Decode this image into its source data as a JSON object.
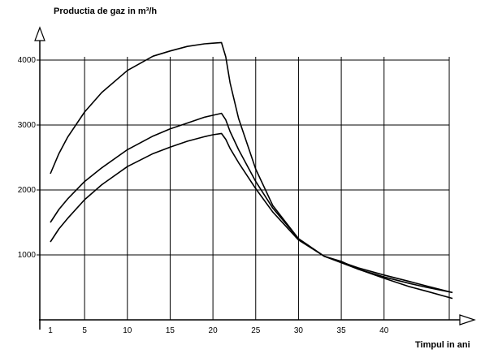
{
  "chart_data": {
    "type": "line",
    "ylabel": "Productia de gaz in m³/h",
    "xlabel": "Timpul in ani",
    "xlim": [
      1,
      48
    ],
    "ylim": [
      0,
      4700
    ],
    "xticks": [
      1,
      5,
      10,
      15,
      20,
      25,
      30,
      35,
      40
    ],
    "xtick_labels": [
      "1",
      "5",
      "10",
      "15",
      "20",
      "25",
      "30",
      "35",
      "40"
    ],
    "yticks": [
      1000,
      2000,
      3000,
      4000
    ],
    "ytick_labels": [
      "1000",
      "2000",
      "3000",
      "4000"
    ],
    "grid": true,
    "series": [
      {
        "x": [
          1,
          2,
          3,
          5,
          7,
          10,
          13,
          15,
          17,
          19,
          20,
          21,
          21.5,
          22,
          23,
          25,
          27,
          30,
          33,
          35,
          37,
          40,
          43,
          45,
          48
        ],
        "y": [
          2250,
          2560,
          2810,
          3200,
          3500,
          3840,
          4060,
          4140,
          4210,
          4250,
          4260,
          4270,
          4050,
          3650,
          3100,
          2320,
          1760,
          1250,
          980,
          880,
          780,
          660,
          560,
          500,
          420
        ]
      },
      {
        "x": [
          1,
          2,
          3,
          5,
          7,
          10,
          13,
          15,
          17,
          19,
          20,
          21,
          21.5,
          22,
          23,
          25,
          27,
          30,
          33,
          35,
          37,
          40,
          43,
          45,
          48
        ],
        "y": [
          1500,
          1700,
          1860,
          2130,
          2340,
          2620,
          2830,
          2940,
          3030,
          3120,
          3150,
          3180,
          3080,
          2900,
          2620,
          2130,
          1720,
          1250,
          980,
          890,
          800,
          690,
          590,
          520,
          420
        ]
      },
      {
        "x": [
          1,
          2,
          3,
          5,
          7,
          10,
          13,
          15,
          17,
          19,
          20,
          21,
          21.5,
          22,
          23,
          25,
          27,
          30,
          33,
          35,
          37,
          40,
          43,
          45,
          48
        ],
        "y": [
          1200,
          1400,
          1560,
          1850,
          2080,
          2360,
          2560,
          2660,
          2750,
          2820,
          2850,
          2870,
          2780,
          2640,
          2420,
          2020,
          1660,
          1230,
          980,
          900,
          780,
          640,
          510,
          440,
          330
        ]
      }
    ]
  }
}
